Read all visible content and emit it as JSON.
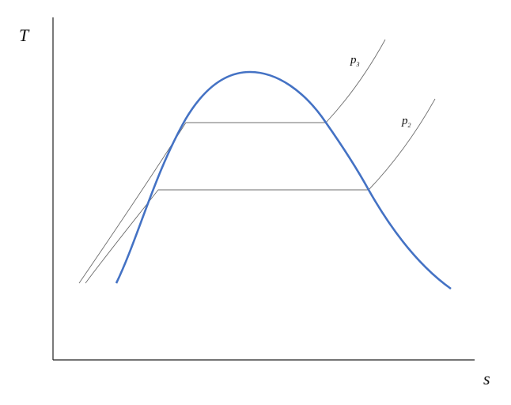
{
  "diagram": {
    "axes": {
      "y_label": "T",
      "x_label": "s"
    },
    "isobars": [
      {
        "label": "p",
        "subscript": "3"
      },
      {
        "label": "p",
        "subscript": "2"
      }
    ],
    "colors": {
      "saturation_dome": "#4472C4",
      "isobar": "#6e6e6e",
      "axis": "#222222"
    }
  }
}
